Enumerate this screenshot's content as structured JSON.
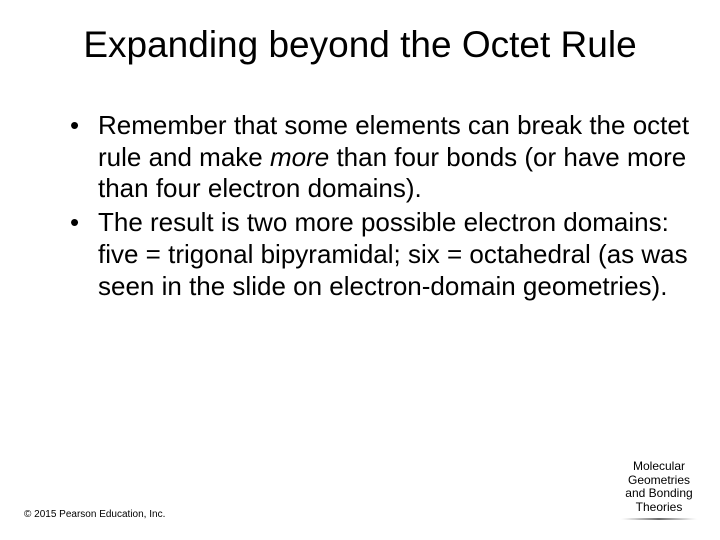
{
  "slide": {
    "title": "Expanding beyond the Octet Rule",
    "title_fontsize": 37,
    "title_color": "#000000",
    "background_color": "#ffffff",
    "bullets": [
      {
        "pre": "Remember that some elements can break the octet rule and make ",
        "italic": "more",
        "post": " than four bonds (or have more than four electron domains)."
      },
      {
        "pre": "The result is two more possible electron domains: five = trigonal bipyramidal; six = octahedral (as was seen in the slide on electron-domain geometries).",
        "italic": "",
        "post": ""
      }
    ],
    "bullet_fontsize": 26,
    "bullet_color": "#000000"
  },
  "footer": {
    "right": {
      "line1": "Molecular",
      "line2": "Geometries",
      "line3": "and Bonding",
      "line4": "Theories",
      "fontsize": 12
    },
    "left": {
      "text": "© 2015 Pearson Education, Inc.",
      "fontsize": 10
    }
  }
}
